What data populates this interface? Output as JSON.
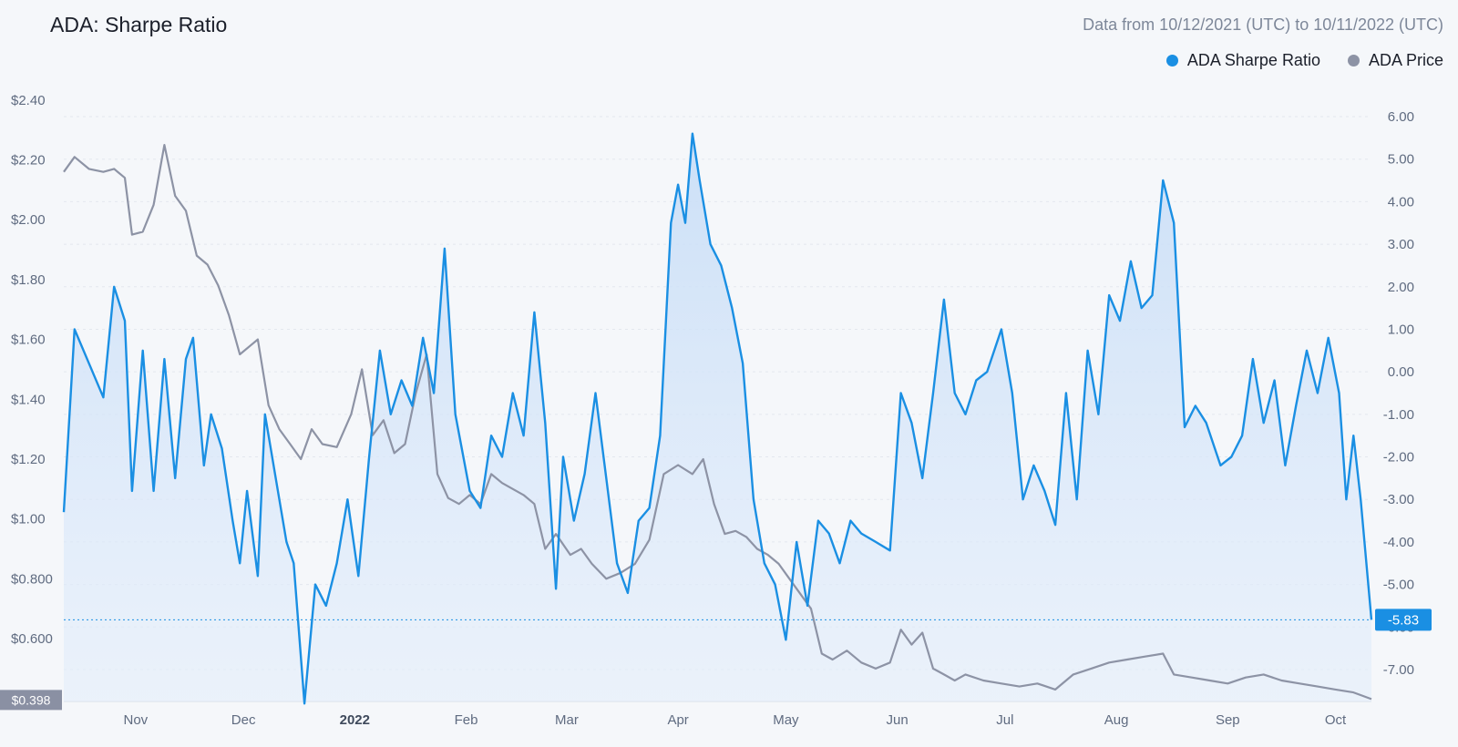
{
  "title": "ADA: Sharpe Ratio",
  "date_range": "Data from 10/12/2021 (UTC) to 10/11/2022 (UTC)",
  "legend": [
    {
      "label": "ADA Sharpe Ratio",
      "color": "#1a8fe3"
    },
    {
      "label": "ADA Price",
      "color": "#8d93a5"
    }
  ],
  "colors": {
    "sharpe": "#1a8fe3",
    "price": "#8d93a5",
    "badge_bg": "#1a8fe3",
    "price_badge_bg": "#8a90a3"
  },
  "chart_data": {
    "type": "line",
    "x_ticks": [
      {
        "label": "Nov",
        "date": "2021-11-01"
      },
      {
        "label": "Dec",
        "date": "2021-12-01"
      },
      {
        "label": "2022",
        "date": "2022-01-01",
        "bold": true
      },
      {
        "label": "Feb",
        "date": "2022-02-01"
      },
      {
        "label": "Mar",
        "date": "2022-03-01"
      },
      {
        "label": "Apr",
        "date": "2022-04-01"
      },
      {
        "label": "May",
        "date": "2022-05-01"
      },
      {
        "label": "Jun",
        "date": "2022-06-01"
      },
      {
        "label": "Jul",
        "date": "2022-07-01"
      },
      {
        "label": "Aug",
        "date": "2022-08-01"
      },
      {
        "label": "Sep",
        "date": "2022-09-01"
      },
      {
        "label": "Oct",
        "date": "2022-10-01"
      }
    ],
    "left_axis": {
      "ticks": [
        "$2.40",
        "$2.20",
        "$2.00",
        "$1.80",
        "$1.60",
        "$1.40",
        "$1.20",
        "$1.00",
        "$0.800",
        "$0.600"
      ],
      "ylim": [
        0.39,
        2.43
      ]
    },
    "right_axis": {
      "ticks": [
        "6.00",
        "5.00",
        "4.00",
        "3.00",
        "2.00",
        "1.00",
        "0.00",
        "-1.00",
        "-2.00",
        "-3.00",
        "-4.00",
        "-5.00",
        "-6.00",
        "-7.00"
      ],
      "ylim": [
        -7.75,
        6.6
      ]
    },
    "last_value_label": "-5.83",
    "last_price_label": "$0.398",
    "series": [
      {
        "name": "ADA Sharpe Ratio",
        "axis": "right",
        "points": [
          [
            "2021-10-12",
            -3.3
          ],
          [
            "2021-10-15",
            1.0
          ],
          [
            "2021-10-19",
            0.2
          ],
          [
            "2021-10-23",
            -0.6
          ],
          [
            "2021-10-26",
            2.0
          ],
          [
            "2021-10-29",
            1.2
          ],
          [
            "2021-10-31",
            -2.8
          ],
          [
            "2021-11-03",
            0.5
          ],
          [
            "2021-11-06",
            -2.8
          ],
          [
            "2021-11-09",
            0.3
          ],
          [
            "2021-11-12",
            -2.5
          ],
          [
            "2021-11-15",
            0.3
          ],
          [
            "2021-11-17",
            0.8
          ],
          [
            "2021-11-20",
            -2.2
          ],
          [
            "2021-11-22",
            -1.0
          ],
          [
            "2021-11-25",
            -1.8
          ],
          [
            "2021-11-28",
            -3.5
          ],
          [
            "2021-11-30",
            -4.5
          ],
          [
            "2021-12-02",
            -2.8
          ],
          [
            "2021-12-05",
            -4.8
          ],
          [
            "2021-12-07",
            -1.0
          ],
          [
            "2021-12-10",
            -2.5
          ],
          [
            "2021-12-13",
            -4.0
          ],
          [
            "2021-12-15",
            -4.5
          ],
          [
            "2021-12-18",
            -7.8
          ],
          [
            "2021-12-21",
            -5.0
          ],
          [
            "2021-12-24",
            -5.5
          ],
          [
            "2021-12-27",
            -4.5
          ],
          [
            "2021-12-30",
            -3.0
          ],
          [
            "2022-01-02",
            -4.8
          ],
          [
            "2022-01-05",
            -2.0
          ],
          [
            "2022-01-08",
            0.5
          ],
          [
            "2022-01-11",
            -1.0
          ],
          [
            "2022-01-14",
            -0.2
          ],
          [
            "2022-01-17",
            -0.8
          ],
          [
            "2022-01-20",
            0.8
          ],
          [
            "2022-01-23",
            -0.5
          ],
          [
            "2022-01-26",
            2.9
          ],
          [
            "2022-01-29",
            -1.0
          ],
          [
            "2022-02-02",
            -2.8
          ],
          [
            "2022-02-05",
            -3.2
          ],
          [
            "2022-02-08",
            -1.5
          ],
          [
            "2022-02-11",
            -2.0
          ],
          [
            "2022-02-14",
            -0.5
          ],
          [
            "2022-02-17",
            -1.5
          ],
          [
            "2022-02-20",
            1.4
          ],
          [
            "2022-02-23",
            -1.2
          ],
          [
            "2022-02-26",
            -5.1
          ],
          [
            "2022-02-28",
            -2.0
          ],
          [
            "2022-03-03",
            -3.5
          ],
          [
            "2022-03-06",
            -2.4
          ],
          [
            "2022-03-09",
            -0.5
          ],
          [
            "2022-03-12",
            -2.5
          ],
          [
            "2022-03-15",
            -4.5
          ],
          [
            "2022-03-18",
            -5.2
          ],
          [
            "2022-03-21",
            -3.5
          ],
          [
            "2022-03-24",
            -3.2
          ],
          [
            "2022-03-27",
            -1.5
          ],
          [
            "2022-03-30",
            3.5
          ],
          [
            "2022-04-01",
            4.4
          ],
          [
            "2022-04-03",
            3.5
          ],
          [
            "2022-04-05",
            5.6
          ],
          [
            "2022-04-07",
            4.5
          ],
          [
            "2022-04-10",
            3.0
          ],
          [
            "2022-04-13",
            2.5
          ],
          [
            "2022-04-16",
            1.5
          ],
          [
            "2022-04-19",
            0.2
          ],
          [
            "2022-04-22",
            -3.0
          ],
          [
            "2022-04-25",
            -4.5
          ],
          [
            "2022-04-28",
            -5.0
          ],
          [
            "2022-05-01",
            -6.3
          ],
          [
            "2022-05-04",
            -4.0
          ],
          [
            "2022-05-07",
            -5.5
          ],
          [
            "2022-05-10",
            -3.5
          ],
          [
            "2022-05-13",
            -3.8
          ],
          [
            "2022-05-16",
            -4.5
          ],
          [
            "2022-05-19",
            -3.5
          ],
          [
            "2022-05-22",
            -3.8
          ],
          [
            "2022-05-26",
            -4.0
          ],
          [
            "2022-05-30",
            -4.2
          ],
          [
            "2022-06-02",
            -0.5
          ],
          [
            "2022-06-05",
            -1.2
          ],
          [
            "2022-06-08",
            -2.5
          ],
          [
            "2022-06-11",
            -0.5
          ],
          [
            "2022-06-14",
            1.7
          ],
          [
            "2022-06-17",
            -0.5
          ],
          [
            "2022-06-20",
            -1.0
          ],
          [
            "2022-06-23",
            -0.2
          ],
          [
            "2022-06-26",
            0.0
          ],
          [
            "2022-06-30",
            1.0
          ],
          [
            "2022-07-03",
            -0.5
          ],
          [
            "2022-07-06",
            -3.0
          ],
          [
            "2022-07-09",
            -2.2
          ],
          [
            "2022-07-12",
            -2.8
          ],
          [
            "2022-07-15",
            -3.6
          ],
          [
            "2022-07-18",
            -0.5
          ],
          [
            "2022-07-21",
            -3.0
          ],
          [
            "2022-07-24",
            0.5
          ],
          [
            "2022-07-27",
            -1.0
          ],
          [
            "2022-07-30",
            1.8
          ],
          [
            "2022-08-02",
            1.2
          ],
          [
            "2022-08-05",
            2.6
          ],
          [
            "2022-08-08",
            1.5
          ],
          [
            "2022-08-11",
            1.8
          ],
          [
            "2022-08-14",
            4.5
          ],
          [
            "2022-08-17",
            3.5
          ],
          [
            "2022-08-20",
            -1.3
          ],
          [
            "2022-08-23",
            -0.8
          ],
          [
            "2022-08-26",
            -1.2
          ],
          [
            "2022-08-30",
            -2.2
          ],
          [
            "2022-09-02",
            -2.0
          ],
          [
            "2022-09-05",
            -1.5
          ],
          [
            "2022-09-08",
            0.3
          ],
          [
            "2022-09-11",
            -1.2
          ],
          [
            "2022-09-14",
            -0.2
          ],
          [
            "2022-09-17",
            -2.2
          ],
          [
            "2022-09-20",
            -0.8
          ],
          [
            "2022-09-23",
            0.5
          ],
          [
            "2022-09-26",
            -0.5
          ],
          [
            "2022-09-29",
            0.8
          ],
          [
            "2022-10-02",
            -0.5
          ],
          [
            "2022-10-04",
            -3.0
          ],
          [
            "2022-10-06",
            -1.5
          ],
          [
            "2022-10-08",
            -3.0
          ],
          [
            "2022-10-11",
            -5.83
          ]
        ]
      },
      {
        "name": "ADA Price",
        "axis": "left",
        "points": [
          [
            "2021-10-12",
            2.16
          ],
          [
            "2021-10-15",
            2.21
          ],
          [
            "2021-10-19",
            2.17
          ],
          [
            "2021-10-23",
            2.16
          ],
          [
            "2021-10-26",
            2.17
          ],
          [
            "2021-10-29",
            2.14
          ],
          [
            "2021-10-31",
            1.95
          ],
          [
            "2021-11-03",
            1.96
          ],
          [
            "2021-11-06",
            2.05
          ],
          [
            "2021-11-09",
            2.25
          ],
          [
            "2021-11-12",
            2.08
          ],
          [
            "2021-11-15",
            2.03
          ],
          [
            "2021-11-18",
            1.88
          ],
          [
            "2021-11-21",
            1.85
          ],
          [
            "2021-11-24",
            1.78
          ],
          [
            "2021-11-27",
            1.68
          ],
          [
            "2021-11-30",
            1.55
          ],
          [
            "2021-12-03",
            1.58
          ],
          [
            "2021-12-05",
            1.6
          ],
          [
            "2021-12-08",
            1.38
          ],
          [
            "2021-12-11",
            1.3
          ],
          [
            "2021-12-14",
            1.25
          ],
          [
            "2021-12-17",
            1.2
          ],
          [
            "2021-12-20",
            1.3
          ],
          [
            "2021-12-23",
            1.25
          ],
          [
            "2021-12-27",
            1.24
          ],
          [
            "2021-12-31",
            1.35
          ],
          [
            "2022-01-03",
            1.5
          ],
          [
            "2022-01-06",
            1.28
          ],
          [
            "2022-01-09",
            1.33
          ],
          [
            "2022-01-12",
            1.22
          ],
          [
            "2022-01-15",
            1.25
          ],
          [
            "2022-01-18",
            1.42
          ],
          [
            "2022-01-21",
            1.55
          ],
          [
            "2022-01-24",
            1.15
          ],
          [
            "2022-01-27",
            1.07
          ],
          [
            "2022-01-30",
            1.05
          ],
          [
            "2022-02-02",
            1.08
          ],
          [
            "2022-02-05",
            1.05
          ],
          [
            "2022-02-08",
            1.15
          ],
          [
            "2022-02-11",
            1.12
          ],
          [
            "2022-02-14",
            1.1
          ],
          [
            "2022-02-17",
            1.08
          ],
          [
            "2022-02-20",
            1.05
          ],
          [
            "2022-02-23",
            0.9
          ],
          [
            "2022-02-26",
            0.95
          ],
          [
            "2022-03-02",
            0.88
          ],
          [
            "2022-03-05",
            0.9
          ],
          [
            "2022-03-08",
            0.85
          ],
          [
            "2022-03-12",
            0.8
          ],
          [
            "2022-03-16",
            0.82
          ],
          [
            "2022-03-20",
            0.85
          ],
          [
            "2022-03-24",
            0.93
          ],
          [
            "2022-03-28",
            1.15
          ],
          [
            "2022-04-01",
            1.18
          ],
          [
            "2022-04-05",
            1.15
          ],
          [
            "2022-04-08",
            1.2
          ],
          [
            "2022-04-11",
            1.05
          ],
          [
            "2022-04-14",
            0.95
          ],
          [
            "2022-04-17",
            0.96
          ],
          [
            "2022-04-20",
            0.94
          ],
          [
            "2022-04-23",
            0.9
          ],
          [
            "2022-04-26",
            0.88
          ],
          [
            "2022-04-29",
            0.85
          ],
          [
            "2022-05-02",
            0.8
          ],
          [
            "2022-05-05",
            0.75
          ],
          [
            "2022-05-08",
            0.7
          ],
          [
            "2022-05-11",
            0.55
          ],
          [
            "2022-05-14",
            0.53
          ],
          [
            "2022-05-18",
            0.56
          ],
          [
            "2022-05-22",
            0.52
          ],
          [
            "2022-05-26",
            0.5
          ],
          [
            "2022-05-30",
            0.52
          ],
          [
            "2022-06-02",
            0.63
          ],
          [
            "2022-06-05",
            0.58
          ],
          [
            "2022-06-08",
            0.62
          ],
          [
            "2022-06-11",
            0.5
          ],
          [
            "2022-06-14",
            0.48
          ],
          [
            "2022-06-17",
            0.46
          ],
          [
            "2022-06-20",
            0.48
          ],
          [
            "2022-06-25",
            0.46
          ],
          [
            "2022-06-30",
            0.45
          ],
          [
            "2022-07-05",
            0.44
          ],
          [
            "2022-07-10",
            0.45
          ],
          [
            "2022-07-15",
            0.43
          ],
          [
            "2022-07-20",
            0.48
          ],
          [
            "2022-07-25",
            0.5
          ],
          [
            "2022-07-30",
            0.52
          ],
          [
            "2022-08-04",
            0.53
          ],
          [
            "2022-08-09",
            0.54
          ],
          [
            "2022-08-14",
            0.55
          ],
          [
            "2022-08-17",
            0.48
          ],
          [
            "2022-08-22",
            0.47
          ],
          [
            "2022-08-27",
            0.46
          ],
          [
            "2022-09-01",
            0.45
          ],
          [
            "2022-09-06",
            0.47
          ],
          [
            "2022-09-11",
            0.48
          ],
          [
            "2022-09-16",
            0.46
          ],
          [
            "2022-09-21",
            0.45
          ],
          [
            "2022-09-26",
            0.44
          ],
          [
            "2022-10-01",
            0.43
          ],
          [
            "2022-10-06",
            0.42
          ],
          [
            "2022-10-11",
            0.398
          ]
        ]
      }
    ]
  }
}
